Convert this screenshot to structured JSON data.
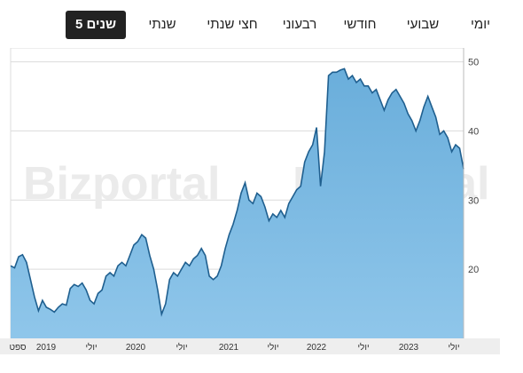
{
  "tabs": [
    {
      "label": "יומי",
      "active": false
    },
    {
      "label": "שבועי",
      "active": false
    },
    {
      "label": "חודשי",
      "active": false
    },
    {
      "label": "רבעוני",
      "active": false
    },
    {
      "label": "חצי שנתי",
      "active": false
    },
    {
      "label": "שנתי",
      "active": false
    },
    {
      "label": "5 שנים",
      "active": true
    }
  ],
  "watermark": "Bizportal",
  "colors": {
    "fill": "#8fc6ea",
    "line": "#1f5f8f",
    "active_tab": "#222222"
  },
  "chart_data": {
    "type": "area",
    "title": "",
    "xlabel": "",
    "ylabel": "",
    "ylim": [
      10,
      52
    ],
    "y_ticks": [
      "50",
      "40",
      "30",
      "20"
    ],
    "x_ticks": [
      "ספט",
      "2019",
      "יולי",
      "2020",
      "יולי",
      "2021",
      "יולי",
      "2022",
      "יולי",
      "2023",
      "יולי"
    ],
    "grid": true,
    "series": [
      {
        "values": [
          20.5,
          20.2,
          21.8,
          22.1,
          21.0,
          18.5,
          16.0,
          14.0,
          15.5,
          14.5,
          14.2,
          13.8,
          14.5,
          15.0,
          14.8,
          17.2,
          17.8,
          17.5,
          18.0,
          17.0,
          15.5,
          15.0,
          16.5,
          17.0,
          19.0,
          19.5,
          19.0,
          20.5,
          21.0,
          20.5,
          22.0,
          23.5,
          24.0,
          25.0,
          24.5,
          22.0,
          20.0,
          17.0,
          13.5,
          15.0,
          18.5,
          19.5,
          19.0,
          20.0,
          21.0,
          20.5,
          21.5,
          22.0,
          23.0,
          22.0,
          19.0,
          18.5,
          19.0,
          20.5,
          23.0,
          25.0,
          26.5,
          28.5,
          31.0,
          32.5,
          30.0,
          29.5,
          31.0,
          30.5,
          29.0,
          27.0,
          28.0,
          27.5,
          28.5,
          27.5,
          29.5,
          30.5,
          31.5,
          32.0,
          35.5,
          37.0,
          38.0,
          40.5,
          32.0,
          37.0,
          48.0,
          48.5,
          48.5,
          48.8,
          49.0,
          47.5,
          48.0,
          47.0,
          47.5,
          46.5,
          46.5,
          45.5,
          46.0,
          44.5,
          43.0,
          44.5,
          45.5,
          46.0,
          45.0,
          44.0,
          42.5,
          41.5,
          40.0,
          41.5,
          43.5,
          45.0,
          43.5,
          42.0,
          39.5,
          40.0,
          39.0,
          37.0,
          38.0,
          37.5,
          34.5
        ]
      }
    ]
  }
}
